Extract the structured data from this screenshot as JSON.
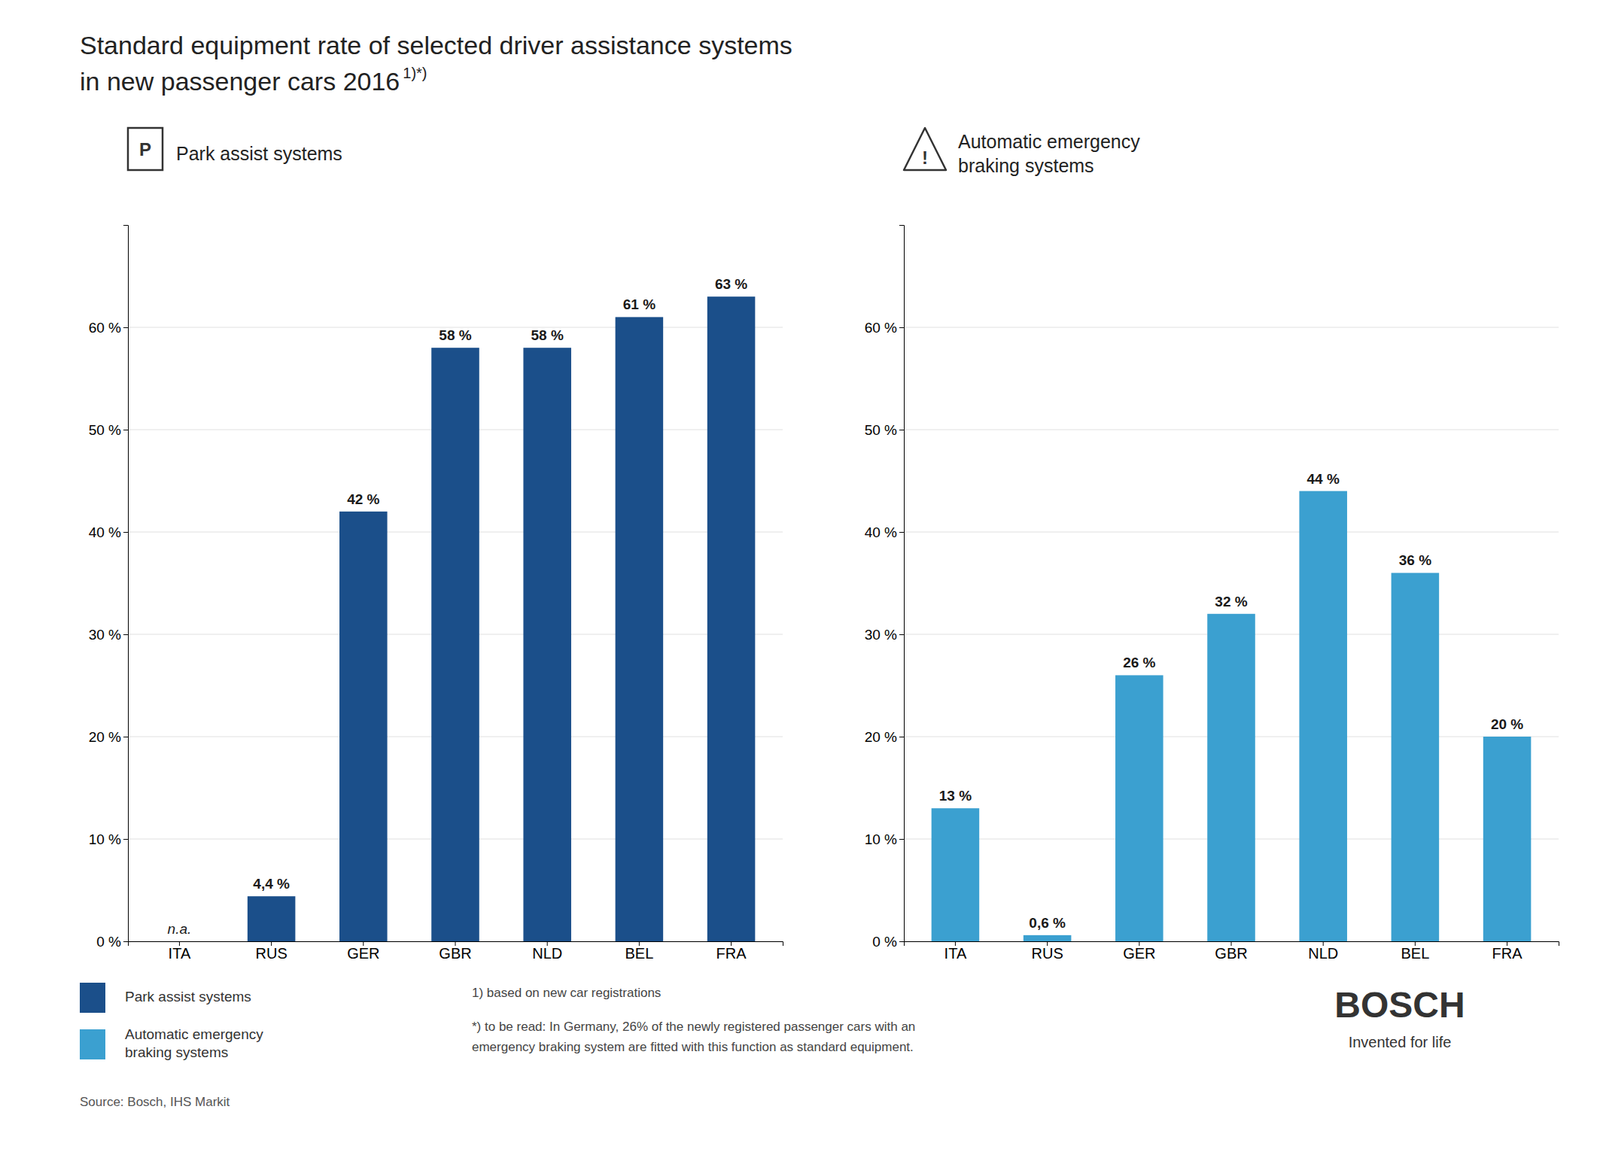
{
  "title": "Standard equipment rate of selected driver assistance systems",
  "subtitle": "in new passenger cars 2016",
  "annotations": [
    "1)*)",
    "P",
    "!",
    "1) based on new car registrations",
    "*) to be read: In Germany, 26% of the newly registered passenger cars with an\nemergency braking system are fitted with this function as standard equipment.",
    "Source: Bosch, IHS Markit",
    "BOSCH",
    "Invented for life"
  ],
  "chart_data": [
    {
      "type": "bar",
      "title": "Park assist systems",
      "categories": [
        "ITA",
        "RUS",
        "GER",
        "GBR",
        "NLD",
        "BEL",
        "FRA"
      ],
      "series": [
        {
          "name": "Park assist systems",
          "color": "#1b4f8a",
          "values": [
            null,
            4.4,
            42,
            58,
            58,
            61,
            63
          ],
          "value_labels": [
            "n.a.",
            "4,4 %",
            "42 %",
            "58 %",
            "58 %",
            "61 %",
            "63 %"
          ]
        }
      ],
      "ylim": [
        0,
        70
      ],
      "yticks": [
        {
          "value": 0,
          "label": "0 %"
        },
        {
          "value": 10,
          "label": "10 %"
        },
        {
          "value": 20,
          "label": "20 %"
        },
        {
          "value": 30,
          "label": "30 %"
        },
        {
          "value": 40,
          "label": "40 %"
        },
        {
          "value": 50,
          "label": "50 %"
        },
        {
          "value": 60,
          "label": "60 %"
        }
      ],
      "grid": true,
      "data_labels": true,
      "legend": "bottom-left"
    },
    {
      "type": "bar",
      "title": "Automatic emergency\nbraking systems",
      "categories": [
        "ITA",
        "RUS",
        "GER",
        "GBR",
        "NLD",
        "BEL",
        "FRA"
      ],
      "series": [
        {
          "name": "Automatic emergency\nbraking systems",
          "color": "#3ba0d0",
          "values": [
            13,
            0.6,
            26,
            32,
            44,
            36,
            20
          ],
          "value_labels": [
            "13 %",
            "0,6 %",
            "26 %",
            "32 %",
            "44 %",
            "36 %",
            "20 %"
          ]
        }
      ],
      "ylim": [
        0,
        70
      ],
      "yticks": [
        {
          "value": 0,
          "label": "0 %"
        },
        {
          "value": 10,
          "label": "10 %"
        },
        {
          "value": 20,
          "label": "20 %"
        },
        {
          "value": 30,
          "label": "30 %"
        },
        {
          "value": 40,
          "label": "40 %"
        },
        {
          "value": 50,
          "label": "50 %"
        },
        {
          "value": 60,
          "label": "60 %"
        }
      ],
      "grid": true,
      "data_labels": true,
      "legend": "bottom-left"
    }
  ]
}
